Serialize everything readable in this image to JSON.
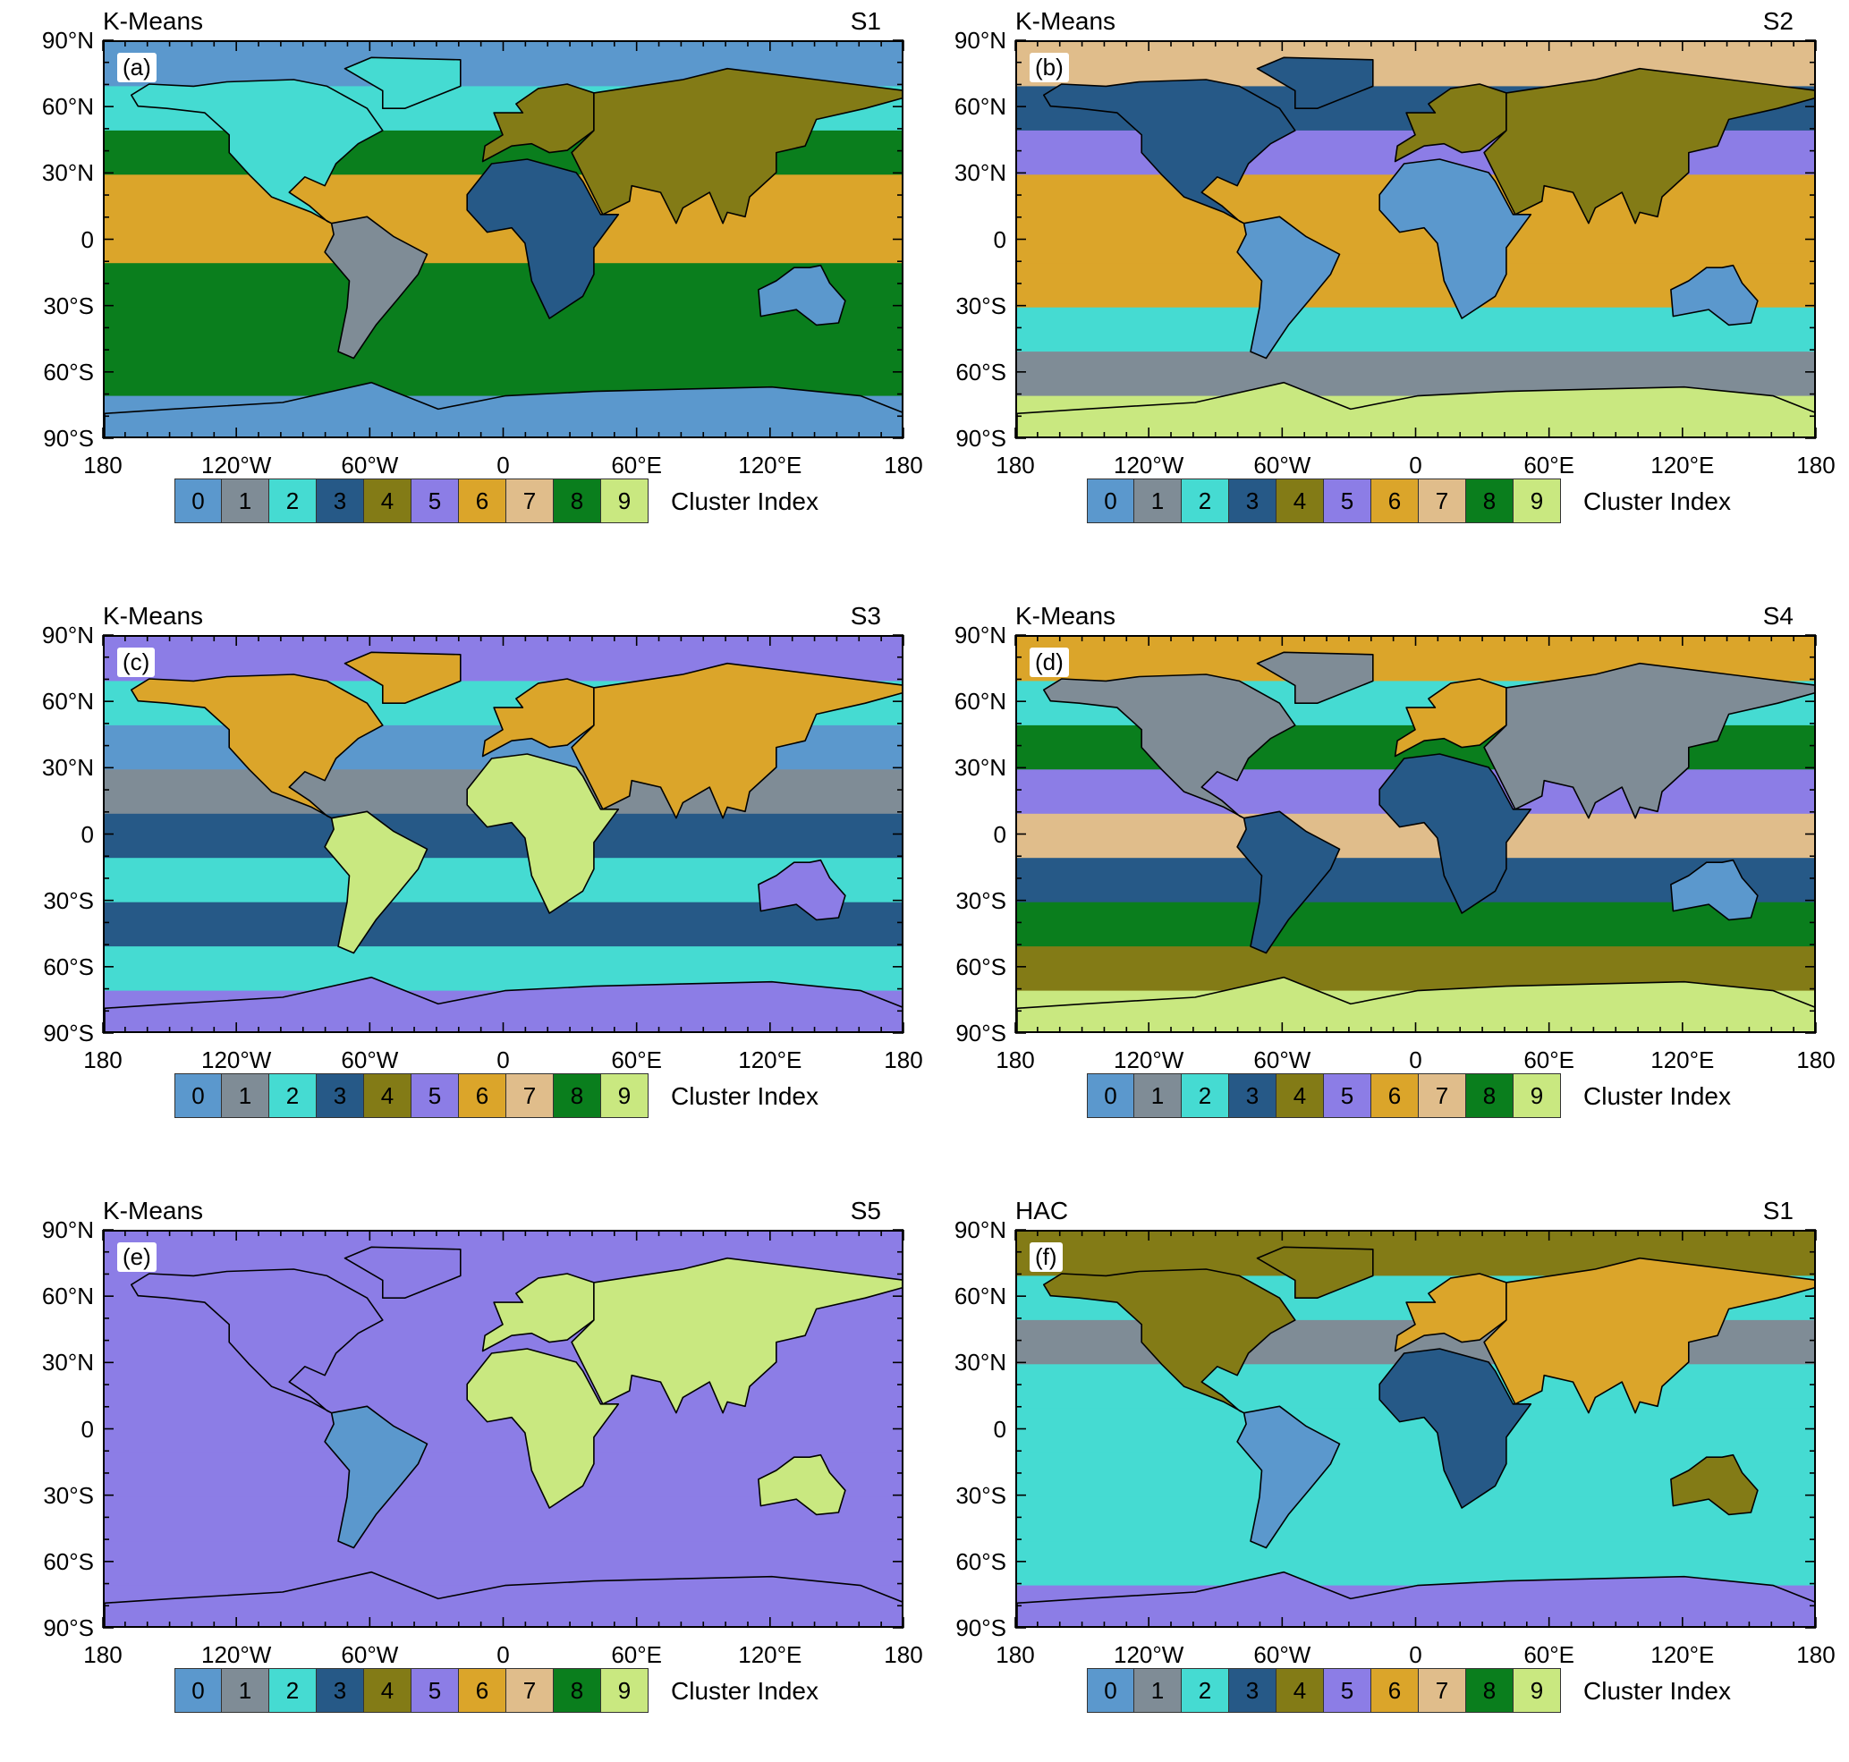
{
  "palette": [
    {
      "index": "0",
      "color": "#5b98cd"
    },
    {
      "index": "1",
      "color": "#7f8c96"
    },
    {
      "index": "2",
      "color": "#45dbd2"
    },
    {
      "index": "3",
      "color": "#265987"
    },
    {
      "index": "4",
      "color": "#837b16"
    },
    {
      "index": "5",
      "color": "#8c7de6"
    },
    {
      "index": "6",
      "color": "#dba52a"
    },
    {
      "index": "7",
      "color": "#e0bd8b"
    },
    {
      "index": "8",
      "color": "#0a7e1d"
    },
    {
      "index": "9",
      "color": "#c9e880"
    }
  ],
  "legend_title": "Cluster Index",
  "lat_labels": [
    "90°N",
    "60°N",
    "30°N",
    "0",
    "30°S",
    "60°S",
    "90°S"
  ],
  "lon_labels": [
    "180",
    "120°W",
    "60°W",
    "0",
    "60°E",
    "120°E",
    "180"
  ],
  "panels": [
    {
      "id": "a",
      "label": "(a)",
      "method": "K-Means",
      "scenario": "S1",
      "bands": [
        0,
        2,
        8,
        6,
        6,
        8,
        8,
        8,
        0
      ],
      "land": {
        "na": 2,
        "sa": 1,
        "af": 3,
        "eu": 4,
        "as": 4,
        "au": 0,
        "ant": 0
      }
    },
    {
      "id": "b",
      "label": "(b)",
      "method": "K-Means",
      "scenario": "S2",
      "bands": [
        7,
        3,
        5,
        6,
        6,
        6,
        2,
        1,
        9
      ],
      "land": {
        "na": 3,
        "sa": 0,
        "af": 0,
        "eu": 4,
        "as": 4,
        "au": 0,
        "ant": 9
      }
    },
    {
      "id": "c",
      "label": "(c)",
      "method": "K-Means",
      "scenario": "S3",
      "bands": [
        5,
        2,
        0,
        1,
        3,
        2,
        3,
        2,
        5
      ],
      "land": {
        "na": 6,
        "sa": 9,
        "af": 9,
        "eu": 6,
        "as": 6,
        "au": 5,
        "ant": 5
      }
    },
    {
      "id": "d",
      "label": "(d)",
      "method": "K-Means",
      "scenario": "S4",
      "bands": [
        6,
        2,
        8,
        5,
        7,
        3,
        8,
        4,
        9
      ],
      "land": {
        "na": 1,
        "sa": 3,
        "af": 3,
        "eu": 6,
        "as": 1,
        "au": 0,
        "ant": 9
      }
    },
    {
      "id": "e",
      "label": "(e)",
      "method": "K-Means",
      "scenario": "S5",
      "bands": [
        5,
        5,
        5,
        5,
        5,
        5,
        5,
        5,
        5
      ],
      "land": {
        "na": 5,
        "sa": 0,
        "af": 9,
        "eu": 9,
        "as": 9,
        "au": 9,
        "ant": 5
      }
    },
    {
      "id": "f",
      "label": "(f)",
      "method": "HAC",
      "scenario": "S1",
      "bands": [
        4,
        2,
        1,
        2,
        2,
        2,
        2,
        2,
        5
      ],
      "land": {
        "na": 4,
        "sa": 0,
        "af": 3,
        "eu": 6,
        "as": 6,
        "au": 4,
        "ant": 5
      }
    }
  ]
}
